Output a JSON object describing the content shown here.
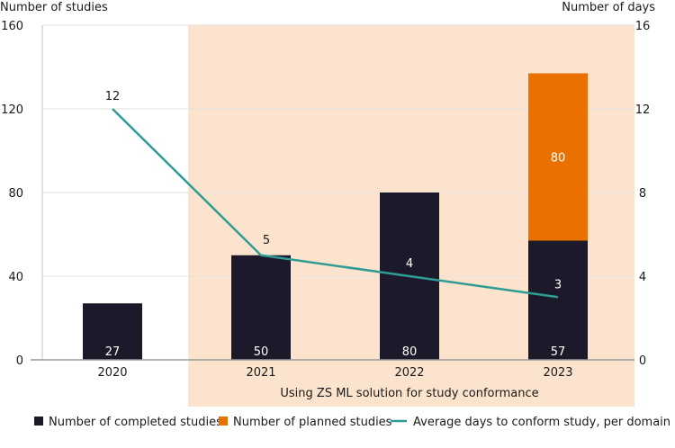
{
  "chart_data": {
    "type": "bar",
    "title": "",
    "categories": [
      "2020",
      "2021",
      "2022",
      "2023"
    ],
    "series": [
      {
        "name": "Number of completed studies",
        "kind": "bar",
        "stack": "studies",
        "axis": "left",
        "color": "#1c1a2a",
        "values": [
          27,
          50,
          80,
          57
        ],
        "labels": [
          "27",
          "50",
          "80",
          "57"
        ]
      },
      {
        "name": "Number of planned studies",
        "kind": "bar",
        "stack": "studies",
        "axis": "left",
        "color": "#ea7100",
        "values": [
          0,
          0,
          0,
          80
        ],
        "labels": [
          "",
          "",
          "",
          "80"
        ]
      },
      {
        "name": "Average days to conform study, per domain",
        "kind": "line",
        "axis": "right",
        "color": "#2e9c94",
        "values": [
          12,
          5,
          4,
          3
        ],
        "labels": [
          "12",
          "5",
          "4",
          "3"
        ]
      }
    ],
    "ylabel": "Number of studies",
    "y2label": "Number of days",
    "ylim": [
      0,
      160
    ],
    "y2lim": [
      0,
      16
    ],
    "yticks": [
      "0",
      "40",
      "80",
      "120",
      "160"
    ],
    "y2ticks": [
      "0",
      "4",
      "8",
      "12",
      "16"
    ],
    "grid": true,
    "annotation": {
      "text": "Using ZS ML solution for study conformance",
      "from_category": "2021",
      "to_category": "2023",
      "color": "#fbe3ce"
    },
    "legend_position": "bottom"
  }
}
